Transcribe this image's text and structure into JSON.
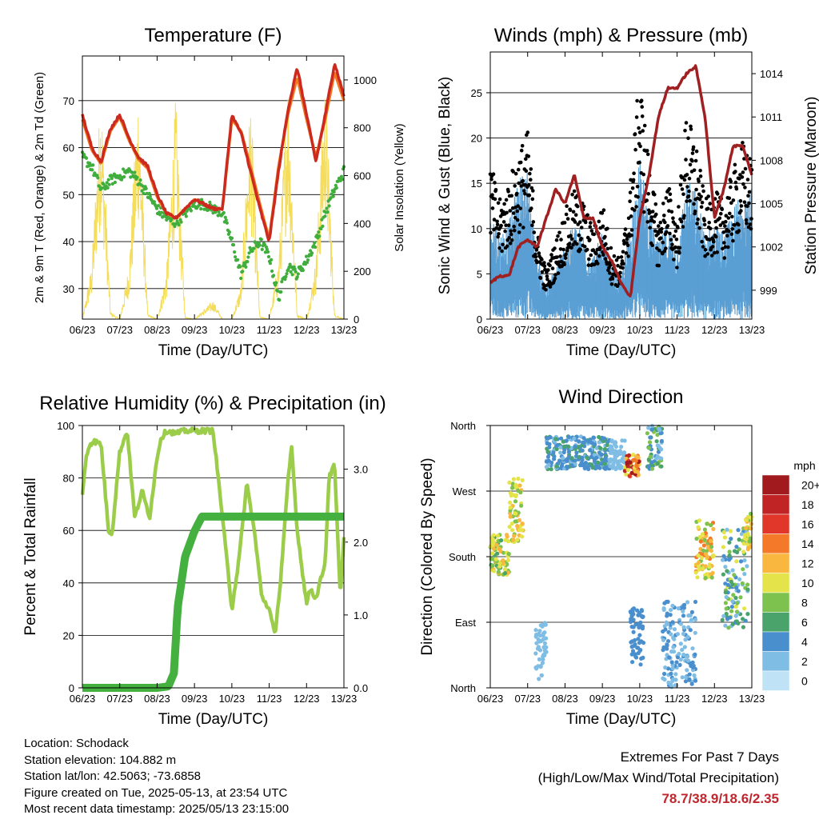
{
  "x_ticks": [
    "06/23",
    "07/23",
    "08/23",
    "09/23",
    "10/23",
    "11/23",
    "12/23",
    "13/23"
  ],
  "xlabel": "Time (Day/UTC)",
  "chart_data": [
    {
      "type": "line",
      "title": "Temperature (F)",
      "ylabel_left": "2m & 9m T (Red, Orange) & 2m Td (Green)",
      "ylabel_right": "Solar Insolation (Yellow)",
      "ylim_left": [
        23.5,
        79.5
      ],
      "ylim_right": [
        0,
        1100
      ],
      "yticks_left": [
        30,
        40,
        50,
        60,
        70
      ],
      "yticks_right": [
        0,
        200,
        400,
        600,
        800,
        1000
      ],
      "x": [
        6,
        6.25,
        6.5,
        6.75,
        7,
        7.25,
        7.5,
        7.75,
        8,
        8.25,
        8.5,
        8.75,
        9,
        9.25,
        9.5,
        9.75,
        10,
        10.25,
        10.5,
        10.75,
        11,
        11.25,
        11.5,
        11.75,
        12,
        12.25,
        12.5,
        12.75,
        13
      ],
      "series": [
        {
          "name": "2m T",
          "color": "#cc2a1e",
          "values": [
            67,
            60,
            57,
            64,
            67,
            62,
            58,
            56,
            50,
            46,
            45,
            47,
            49,
            48,
            47,
            47,
            67,
            63,
            55,
            47,
            40,
            55,
            68,
            77,
            67,
            57,
            67,
            78,
            71
          ]
        },
        {
          "name": "9m T",
          "color": "#f07a22",
          "values": [
            66,
            59.5,
            56.5,
            63.5,
            66.5,
            61.5,
            57.5,
            55.5,
            49.5,
            46,
            45,
            47,
            49,
            48,
            47,
            47,
            66,
            63.5,
            56,
            48,
            40.5,
            56,
            67,
            75,
            66,
            58,
            66,
            76,
            70
          ]
        },
        {
          "name": "2m Td",
          "color": "#3fae3c",
          "values": [
            58,
            56,
            51,
            53,
            54,
            55,
            53,
            50,
            47,
            45,
            44,
            46,
            48,
            48,
            47,
            46,
            40,
            33,
            38,
            40,
            37,
            28,
            35,
            33,
            36,
            40,
            46,
            51,
            55
          ]
        },
        {
          "name": "Solar Insolation",
          "color": "#f5dd5a",
          "values": [
            0,
            230,
            1000,
            30,
            0,
            230,
            1000,
            20,
            0,
            200,
            950,
            10,
            0,
            40,
            80,
            0,
            0,
            150,
            950,
            10,
            0,
            250,
            1050,
            20,
            0,
            250,
            1050,
            20,
            0
          ]
        }
      ]
    },
    {
      "type": "scatter",
      "title": "Winds (mph) & Pressure (mb)",
      "ylabel_left": "Sonic Wind & Gust (Blue, Black)",
      "ylabel_right": "Station Pressure (Maroon)",
      "ylim_left": [
        0,
        29.5
      ],
      "ylim_right": [
        997,
        1015.5
      ],
      "yticks_left": [
        0,
        5,
        10,
        15,
        20,
        25
      ],
      "yticks_right": [
        999,
        1002,
        1005,
        1008,
        1011,
        1014
      ],
      "wind_envelope": {
        "x": [
          6,
          6.25,
          6.5,
          6.75,
          7,
          7.25,
          7.5,
          7.75,
          8,
          8.25,
          8.5,
          8.75,
          9,
          9.25,
          9.5,
          9.75,
          10,
          10.25,
          10.5,
          10.75,
          11,
          11.25,
          11.5,
          11.75,
          12,
          12.25,
          12.5,
          12.75,
          13
        ],
        "sonic": [
          11,
          8,
          9,
          13,
          14,
          6,
          3,
          5,
          7,
          9,
          8,
          6,
          8,
          5,
          4,
          9,
          15,
          10,
          7,
          9,
          7,
          13,
          12,
          8,
          9,
          8,
          10,
          13,
          12
        ],
        "gust": [
          16,
          12,
          14,
          17,
          19,
          9,
          5,
          8,
          11,
          13,
          12,
          9,
          12,
          7,
          6,
          14,
          25,
          16,
          10,
          14,
          10,
          21,
          18,
          12,
          13,
          12,
          15,
          18,
          16
        ]
      },
      "series": [
        {
          "name": "Station Pressure",
          "color": "#a02021",
          "x": [
            6,
            6.25,
            6.5,
            6.75,
            7,
            7.25,
            7.5,
            7.75,
            8,
            8.25,
            8.5,
            8.75,
            9,
            9.25,
            9.5,
            9.75,
            10,
            10.25,
            10.5,
            10.75,
            11,
            11.25,
            11.5,
            11.75,
            12,
            12.25,
            12.5,
            12.75,
            13
          ],
          "values": [
            999.5,
            1000,
            1000,
            1002,
            1002.5,
            1002,
            1004,
            1006,
            1005,
            1007,
            1004,
            1004,
            1002,
            1001,
            999.5,
            998.5,
            1004,
            1007,
            1011,
            1013,
            1013,
            1014,
            1014.5,
            1011,
            1004,
            1006,
            1009,
            1009,
            1007
          ]
        }
      ]
    },
    {
      "type": "line",
      "title": "Relative Humidity (%) & Precipitation (in)",
      "ylabel_left": "Percent & Total Rainfall",
      "ylim_left": [
        0,
        100
      ],
      "ylim_right": [
        0,
        3.6
      ],
      "yticks_left": [
        0,
        20,
        40,
        60,
        80,
        100
      ],
      "yticks_right": [
        "0.0",
        "1.0",
        "2.0",
        "3.0"
      ],
      "series": [
        {
          "name": "Relative Humidity",
          "color": "#9ccd4a",
          "x": [
            6,
            6.1,
            6.2,
            6.3,
            6.5,
            6.7,
            6.8,
            6.9,
            7,
            7.2,
            7.4,
            7.6,
            7.7,
            7.8,
            8,
            8.1,
            8.25,
            8.5,
            8.75,
            9,
            9.25,
            9.5,
            9.75,
            10,
            10.2,
            10.4,
            10.6,
            10.8,
            11,
            11.15,
            11.3,
            11.5,
            11.6,
            11.75,
            12,
            12.1,
            12.25,
            12.5,
            12.6,
            12.75,
            12.9,
            13
          ],
          "values": [
            73,
            88,
            93,
            94,
            93,
            60,
            59,
            75,
            90,
            98,
            65,
            75,
            70,
            65,
            88,
            95,
            98,
            97,
            98,
            98,
            98,
            98,
            65,
            30,
            50,
            78,
            60,
            35,
            30,
            20,
            40,
            78,
            92,
            60,
            32,
            38,
            34,
            48,
            80,
            85,
            35,
            57
          ]
        },
        {
          "name": "Total Precipitation",
          "color": "#44b040",
          "x": [
            6,
            6.5,
            7,
            7.5,
            8,
            8.3,
            8.45,
            8.55,
            8.75,
            9,
            9.2,
            9.5,
            10,
            10.5,
            11,
            11.5,
            12,
            12.5,
            13
          ],
          "values": [
            0,
            0,
            0,
            0,
            0,
            0.02,
            0.2,
            1.1,
            1.8,
            2.15,
            2.35,
            2.35,
            2.35,
            2.35,
            2.35,
            2.35,
            2.35,
            2.35,
            2.35
          ]
        }
      ]
    },
    {
      "type": "scatter",
      "title": "Wind Direction",
      "ylabel": "Direction (Colored By Speed)",
      "yticks": [
        "North",
        "East",
        "South",
        "West",
        "North"
      ],
      "colorbar": {
        "unit": "mph",
        "labels": [
          "0",
          "2",
          "4",
          "6",
          "8",
          "10",
          "12",
          "14",
          "16",
          "18",
          "20+"
        ],
        "colors": [
          "#bfe2f6",
          "#80bde5",
          "#4a8fcd",
          "#49a36a",
          "#7dc24e",
          "#e4e44a",
          "#f9b73f",
          "#f47a2a",
          "#e0372a",
          "#c12425",
          "#a01a1e"
        ]
      },
      "clusters": [
        {
          "x": [
            6,
            6.5
          ],
          "dir": [
            155,
            210
          ],
          "spd": [
            6,
            12
          ]
        },
        {
          "x": [
            6.5,
            6.9
          ],
          "dir": [
            200,
            290
          ],
          "spd": [
            8,
            12
          ]
        },
        {
          "x": [
            7.2,
            7.5
          ],
          "dir": [
            10,
            90
          ],
          "spd": [
            1,
            3
          ]
        },
        {
          "x": [
            7.5,
            9.2
          ],
          "dir": [
            300,
            345
          ],
          "spd": [
            2,
            6
          ]
        },
        {
          "x": [
            9.2,
            9.6
          ],
          "dir": [
            300,
            340
          ],
          "spd": [
            1,
            3
          ]
        },
        {
          "x": [
            9.6,
            10
          ],
          "dir": [
            290,
            320
          ],
          "spd": [
            8,
            20
          ]
        },
        {
          "x": [
            10.2,
            10.6
          ],
          "dir": [
            300,
            360
          ],
          "spd": [
            2,
            8
          ]
        },
        {
          "x": [
            9.75,
            10.1
          ],
          "dir": [
            30,
            110
          ],
          "spd": [
            3,
            5
          ]
        },
        {
          "x": [
            10.6,
            11.5
          ],
          "dir": [
            0,
            120
          ],
          "spd": [
            1,
            5
          ]
        },
        {
          "x": [
            11.5,
            12
          ],
          "dir": [
            150,
            230
          ],
          "spd": [
            8,
            14
          ]
        },
        {
          "x": [
            12.2,
            12.9
          ],
          "dir": [
            80,
            220
          ],
          "spd": [
            1,
            10
          ]
        },
        {
          "x": [
            12.8,
            13
          ],
          "dir": [
            190,
            240
          ],
          "spd": [
            8,
            12
          ]
        }
      ]
    }
  ],
  "info": {
    "location": "Location: Schodack",
    "elevation": "Station elevation: 104.882 m",
    "latlon": "Station lat/lon: 42.5063; -73.6858",
    "created": "Figure created on Tue, 2025-05-13, at 23:54 UTC",
    "recent": "Most recent data timestamp: 2025/05/13 23:15:00"
  },
  "extremes": {
    "title": "Extremes For Past 7 Days",
    "subtitle": "(High/Low/Max Wind/Total Precipitation)",
    "values": "78.7/38.9/18.6/2.35"
  }
}
